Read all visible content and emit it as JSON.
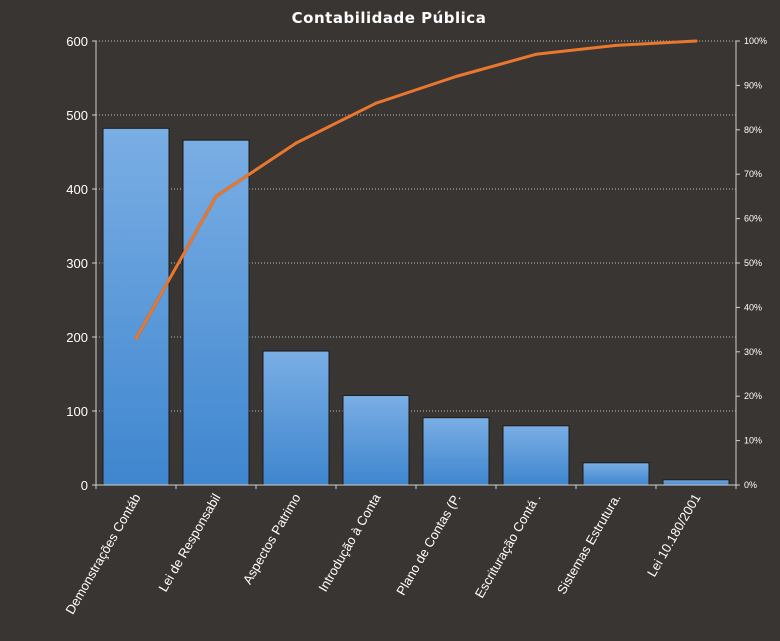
{
  "chart_data": {
    "type": "bar",
    "title": "Contabilidade  Pública",
    "categories": [
      "Demonstrações Contáb",
      "Lei de Responsabil",
      "Aspectos Patrimo",
      "Introdução à Conta",
      "Plano de Contas (P.",
      "Escrituração Contá .",
      "Sistemas Estrutura.",
      "Lei 10.180/2001"
    ],
    "series": [
      {
        "type": "bar",
        "values": [
          482,
          466,
          181,
          121,
          91,
          80,
          30,
          7
        ]
      },
      {
        "type": "line",
        "axis": "secondary",
        "values": [
          0.33,
          0.65,
          0.77,
          0.86,
          0.92,
          0.97,
          0.99,
          1.0
        ]
      }
    ],
    "yticks": [
      "0",
      "100",
      "200",
      "300",
      "400",
      "500",
      "600"
    ],
    "ylim": [
      0,
      600
    ],
    "y2ticks": [
      "0%",
      "10%",
      "20%",
      "30%",
      "40%",
      "50%",
      "60%",
      "70%",
      "80%",
      "90%",
      "100%"
    ],
    "y2lim": [
      0,
      1
    ],
    "grid": true,
    "colors": {
      "background": "#383533",
      "bar_top": "#7aaee4",
      "bar_bottom": "#3f86cf",
      "line": "#e8782f"
    }
  }
}
